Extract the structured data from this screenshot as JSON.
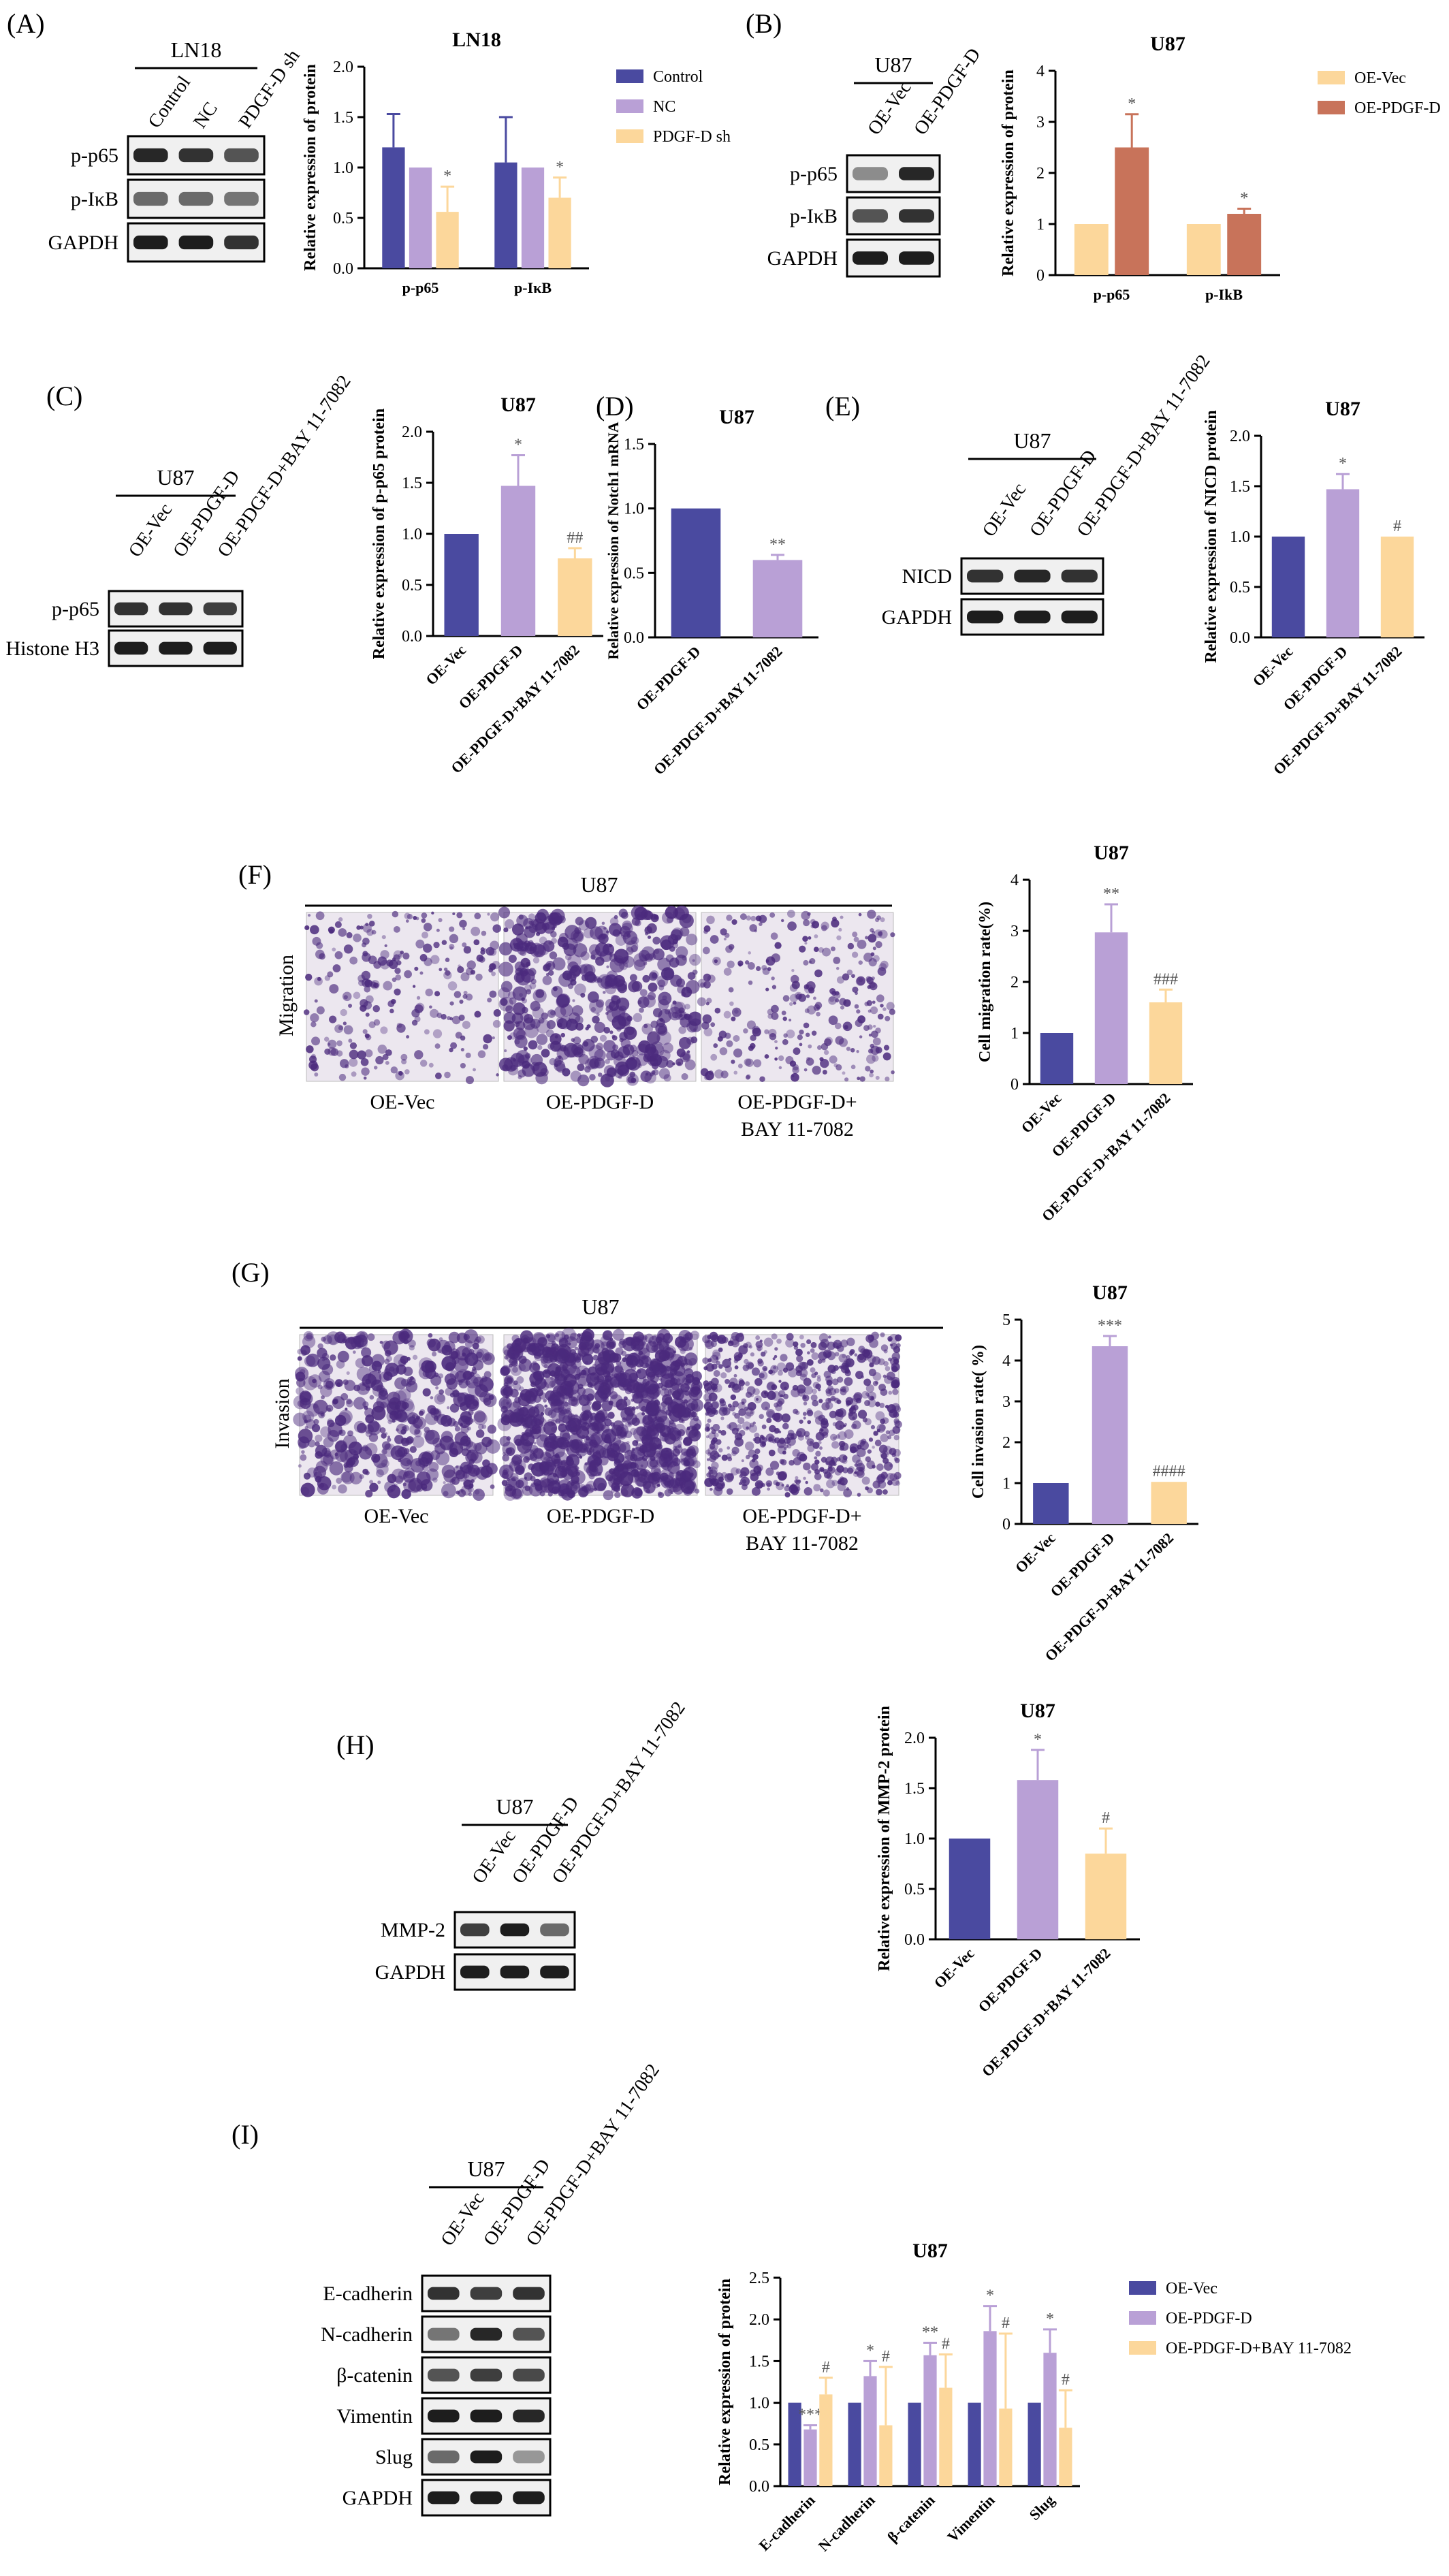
{
  "colors": {
    "navy": "#4a4aa0",
    "lavender": "#b9a0d6",
    "peach": "#fcd79b",
    "terracotta": "#c8735a",
    "grid": "#000000"
  },
  "panels": {
    "A": {
      "letter": "(A)",
      "blot": {
        "cell": "LN18",
        "lanes": [
          "Control",
          "NC",
          "PDGF-D sh"
        ],
        "rows": [
          "p-p65",
          "p-IκB",
          "GAPDH"
        ]
      },
      "chart_data": {
        "type": "bar",
        "title": "LN18",
        "ylabel": "Relative expression of protein",
        "ylim": [
          0,
          2.0
        ],
        "yticks": [
          "0.0",
          "0.5",
          "1.0",
          "1.5",
          "2.0"
        ],
        "categories": [
          "p-p65",
          "p-IκB"
        ],
        "series": [
          {
            "name": "Control",
            "values": [
              1.2,
              1.05
            ],
            "errors": [
              0.33,
              0.45
            ],
            "sig": [
              "",
              ""
            ]
          },
          {
            "name": "NC",
            "values": [
              1.0,
              1.0
            ],
            "errors": [
              0,
              0
            ],
            "sig": [
              "",
              ""
            ]
          },
          {
            "name": "PDGF-D sh",
            "values": [
              0.56,
              0.7
            ],
            "errors": [
              0.25,
              0.2
            ],
            "sig": [
              "*",
              "*"
            ]
          }
        ],
        "legend": "right"
      }
    },
    "B": {
      "letter": "(B)",
      "blot": {
        "cell": "U87",
        "lanes": [
          "OE-Vec",
          "OE-PDGF-D"
        ],
        "rows": [
          "p-p65",
          "p-IκB",
          "GAPDH"
        ]
      },
      "chart_data": {
        "type": "bar",
        "title": "U87",
        "ylabel": "Relative expression of protein",
        "ylim": [
          0,
          4
        ],
        "yticks": [
          "0",
          "1",
          "2",
          "3",
          "4"
        ],
        "categories": [
          "p-p65",
          "p-IkB"
        ],
        "series": [
          {
            "name": "OE-Vec",
            "values": [
              1.0,
              1.0
            ],
            "errors": [
              0,
              0
            ],
            "sig": [
              "",
              ""
            ]
          },
          {
            "name": "OE-PDGF-D",
            "values": [
              2.5,
              1.2
            ],
            "errors": [
              0.65,
              0.1
            ],
            "sig": [
              "*",
              "*"
            ]
          }
        ],
        "legend": "right"
      }
    },
    "C": {
      "letter": "(C)",
      "blot": {
        "cell": "U87",
        "lanes": [
          "OE-Vec",
          "OE-PDGF-D",
          "OE-PDGF-D+BAY 11-7082"
        ],
        "rows": [
          "p-p65",
          "Histone H3"
        ]
      },
      "chart_data": {
        "type": "bar",
        "title": "U87",
        "ylabel": "Relative expression of p-p65 protein",
        "ylim": [
          0,
          2.0
        ],
        "yticks": [
          "0.0",
          "0.5",
          "1.0",
          "1.5",
          "2.0"
        ],
        "categories": [
          "OE-Vec",
          "OE-PDGF-D",
          "OE-PDGF-D+BAY 11-7082"
        ],
        "values": [
          1.0,
          1.47,
          0.76
        ],
        "errors": [
          0,
          0.3,
          0.1
        ],
        "sig": [
          "",
          "*",
          "##"
        ]
      }
    },
    "D": {
      "letter": "(D)",
      "chart_data": {
        "type": "bar",
        "title": "U87",
        "ylabel": "Relative expression of Notch1 mRNA",
        "ylim": [
          0,
          1.5
        ],
        "yticks": [
          "0.0",
          "0.5",
          "1.0",
          "1.5"
        ],
        "categories": [
          "OE-PDGF-D",
          "OE-PDGF-D+BAY 11-7082"
        ],
        "values": [
          1.0,
          0.6
        ],
        "errors": [
          0,
          0.04
        ],
        "sig": [
          "",
          "**"
        ]
      }
    },
    "E": {
      "letter": "(E)",
      "blot": {
        "cell": "U87",
        "lanes": [
          "OE-Vec",
          "OE-PDGF-D",
          "OE-PDGF-D+BAY 11-7082"
        ],
        "rows": [
          "NICD",
          "GAPDH"
        ]
      },
      "chart_data": {
        "type": "bar",
        "title": "U87",
        "ylabel": "Relative expression of NICD protein",
        "ylim": [
          0,
          2.0
        ],
        "yticks": [
          "0.0",
          "0.5",
          "1.0",
          "1.5",
          "2.0"
        ],
        "categories": [
          "OE-Vec",
          "OE-PDGF-D",
          "OE-PDGF-D+BAY 11-7082"
        ],
        "values": [
          1.0,
          1.47,
          1.0
        ],
        "errors": [
          0,
          0.15,
          0
        ],
        "sig": [
          "",
          "*",
          "#"
        ]
      }
    },
    "F": {
      "letter": "(F)",
      "assay": {
        "cell": "U87",
        "side_label": "Migration",
        "conditions": [
          "OE-Vec",
          "OE-PDGF-D",
          "OE-PDGF-D+",
          "BAY 11-7082"
        ]
      },
      "chart_data": {
        "type": "bar",
        "title": "U87",
        "ylabel": "Cell migration rate(%)",
        "ylim": [
          0,
          4
        ],
        "yticks": [
          "0",
          "1",
          "2",
          "3",
          "4"
        ],
        "categories": [
          "OE-Vec",
          "OE-PDGF-D",
          "OE-PDGF-D+BAY 11-7082"
        ],
        "values": [
          1.0,
          2.97,
          1.6
        ],
        "errors": [
          0,
          0.55,
          0.25
        ],
        "sig": [
          "",
          "**",
          "###"
        ]
      }
    },
    "G": {
      "letter": "(G)",
      "assay": {
        "cell": "U87",
        "side_label": "Invasion",
        "conditions": [
          "OE-Vec",
          "OE-PDGF-D",
          "OE-PDGF-D+",
          "BAY 11-7082"
        ]
      },
      "chart_data": {
        "type": "bar",
        "title": "U87",
        "ylabel": "Cell invasion rate( %)",
        "ylim": [
          0,
          5
        ],
        "yticks": [
          "0",
          "1",
          "2",
          "3",
          "4",
          "5"
        ],
        "categories": [
          "OE-Vec",
          "OE-PDGF-D",
          "OE-PDGF-D+BAY 11-7082"
        ],
        "values": [
          1.0,
          4.35,
          1.03
        ],
        "errors": [
          0,
          0.25,
          0
        ],
        "sig": [
          "",
          "***",
          "####"
        ]
      }
    },
    "H": {
      "letter": "(H)",
      "blot": {
        "cell": "U87",
        "lanes": [
          "OE-Vec",
          "OE-PDGF-D",
          "OE-PDGF-D+BAY 11-7082"
        ],
        "rows": [
          "MMP-2",
          "GAPDH"
        ]
      },
      "chart_data": {
        "type": "bar",
        "title": "U87",
        "ylabel": "Relative expression of MMP-2 protein",
        "ylim": [
          0,
          2.0
        ],
        "yticks": [
          "0.0",
          "0.5",
          "1.0",
          "1.5",
          "2.0"
        ],
        "categories": [
          "OE-Vec",
          "OE-PDGF-D",
          "OE-PDGF-D+BAY 11-7082"
        ],
        "values": [
          1.0,
          1.58,
          0.85
        ],
        "errors": [
          0,
          0.3,
          0.25
        ],
        "sig": [
          "",
          "*",
          "#"
        ]
      }
    },
    "I": {
      "letter": "(I)",
      "blot": {
        "cell": "U87",
        "lanes": [
          "OE-Vec",
          "OE-PDGF-D",
          "OE-PDGF-D+BAY 11-7082"
        ],
        "rows": [
          "E-cadherin",
          "N-cadherin",
          "β-catenin",
          "Vimentin",
          "Slug",
          "GAPDH"
        ]
      },
      "chart_data": {
        "type": "bar",
        "title": "U87",
        "ylabel": "Relative expression of protein",
        "ylim": [
          0,
          2.5
        ],
        "yticks": [
          "0.0",
          "0.5",
          "1.0",
          "1.5",
          "2.0",
          "2.5"
        ],
        "categories": [
          "E-cadherin",
          "N-cadherin",
          "β-catenin",
          "Vimentin",
          "Slug"
        ],
        "series": [
          {
            "name": "OE-Vec",
            "values": [
              1.0,
              1.0,
              1.0,
              1.0,
              1.0
            ],
            "errors": [
              0,
              0,
              0,
              0,
              0
            ],
            "sig": [
              "",
              "",
              "",
              "",
              ""
            ]
          },
          {
            "name": "OE-PDGF-D",
            "values": [
              0.68,
              1.32,
              1.57,
              1.86,
              1.6
            ],
            "errors": [
              0.05,
              0.18,
              0.15,
              0.3,
              0.28
            ],
            "sig": [
              "***",
              "*",
              "**",
              "*",
              "*"
            ]
          },
          {
            "name": "OE-PDGF-D+BAY 11-7082",
            "values": [
              1.1,
              0.73,
              1.18,
              0.93,
              0.7
            ],
            "errors": [
              0.2,
              0.7,
              0.4,
              0.9,
              0.45
            ],
            "sig": [
              "#",
              "#",
              "#",
              "#",
              "#"
            ]
          }
        ],
        "legend": "right"
      }
    }
  }
}
